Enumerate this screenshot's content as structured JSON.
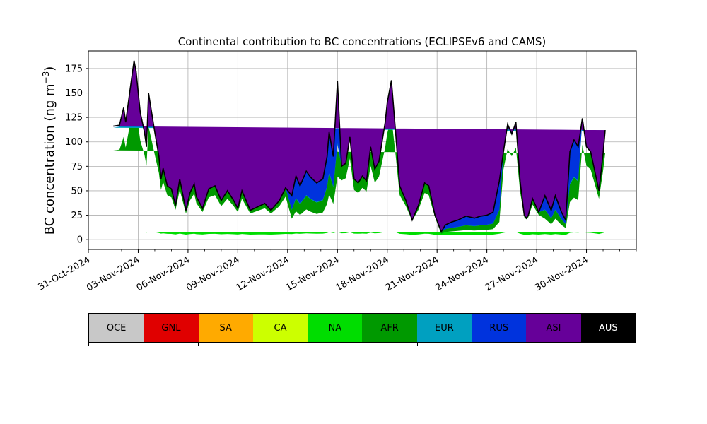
{
  "chart_data": {
    "type": "area",
    "title": "Continental contribution to BC concentrations (ECLIPSEv6 and CAMS)",
    "ylabel_main": "BC concentration (ng m",
    "ylabel_sup": "−3",
    "ylabel_close": ")",
    "xlabel": "",
    "ylim": [
      -10,
      193
    ],
    "yticks": [
      0,
      25,
      50,
      75,
      100,
      125,
      150,
      175
    ],
    "ytick_labels": [
      "0",
      "25",
      "50",
      "75",
      "100",
      "125",
      "150",
      "175"
    ],
    "x_range_days": [
      "2024-10-31",
      "2024-12-03"
    ],
    "xticks": [
      "2024-10-31",
      "2024-11-03",
      "2024-11-06",
      "2024-11-09",
      "2024-11-12",
      "2024-11-15",
      "2024-11-18",
      "2024-11-21",
      "2024-11-24",
      "2024-11-27",
      "2024-11-30"
    ],
    "xtick_labels": [
      "31-Oct-2024",
      "03-Nov-2024",
      "06-Nov-2024",
      "09-Nov-2024",
      "12-Nov-2024",
      "15-Nov-2024",
      "18-Nov-2024",
      "21-Nov-2024",
      "24-Nov-2024",
      "27-Nov-2024",
      "30-Nov-2024"
    ],
    "grid": true,
    "total_x": [
      "2024-11-01T12:00",
      "2024-11-01T21:00",
      "2024-11-02T03:00",
      "2024-11-02T06:00",
      "2024-11-02T12:00",
      "2024-11-02T18:00",
      "2024-11-02T21:00",
      "2024-11-03T03:00",
      "2024-11-03T09:00",
      "2024-11-03T12:00",
      "2024-11-03T15:00",
      "2024-11-04T00:00",
      "2024-11-04T06:00",
      "2024-11-04T09:00",
      "2024-11-04T12:00",
      "2024-11-04T18:00",
      "2024-11-05T00:00",
      "2024-11-05T06:00",
      "2024-11-05T12:00",
      "2024-11-05T21:00",
      "2024-11-06T03:00",
      "2024-11-06T09:00",
      "2024-11-06T12:00",
      "2024-11-06T21:00",
      "2024-11-07T06:00",
      "2024-11-07T15:00",
      "2024-11-08T00:00",
      "2024-11-08T09:00",
      "2024-11-08T18:00",
      "2024-11-09T00:00",
      "2024-11-09T06:00",
      "2024-11-09T18:00",
      "2024-11-10T06:00",
      "2024-11-10T15:00",
      "2024-11-11T00:00",
      "2024-11-11T12:00",
      "2024-11-11T21:00",
      "2024-11-12T06:00",
      "2024-11-12T12:00",
      "2024-11-12T18:00",
      "2024-11-13T03:00",
      "2024-11-13T09:00",
      "2024-11-13T18:00",
      "2024-11-14T03:00",
      "2024-11-14T09:00",
      "2024-11-14T12:00",
      "2024-11-14T18:00",
      "2024-11-15T00:00",
      "2024-11-15T06:00",
      "2024-11-15T12:00",
      "2024-11-15T18:00",
      "2024-11-16T00:00",
      "2024-11-16T06:00",
      "2024-11-16T12:00",
      "2024-11-16T18:00",
      "2024-11-17T00:00",
      "2024-11-17T06:00",
      "2024-11-17T12:00",
      "2024-11-17T21:00",
      "2024-11-18T00:00",
      "2024-11-18T06:00",
      "2024-11-18T12:00",
      "2024-11-18T18:00",
      "2024-11-19T03:00",
      "2024-11-19T12:00",
      "2024-11-19T21:00",
      "2024-11-20T06:00",
      "2024-11-20T12:00",
      "2024-11-20T21:00",
      "2024-11-21T06:00",
      "2024-11-21T12:00",
      "2024-11-21T21:00",
      "2024-11-22T06:00",
      "2024-11-22T18:00",
      "2024-11-23T06:00",
      "2024-11-23T15:00",
      "2024-11-24T00:00",
      "2024-11-24T09:00",
      "2024-11-24T18:00",
      "2024-11-25T00:00",
      "2024-11-25T06:00",
      "2024-11-25T12:00",
      "2024-11-25T18:00",
      "2024-11-26T00:00",
      "2024-11-26T06:00",
      "2024-11-26T09:00",
      "2024-11-26T12:00",
      "2024-11-26T18:00",
      "2024-11-27T03:00",
      "2024-11-27T12:00",
      "2024-11-27T21:00",
      "2024-11-28T03:00",
      "2024-11-28T12:00",
      "2024-11-28T18:00",
      "2024-11-29T00:00",
      "2024-11-29T06:00",
      "2024-11-29T12:00",
      "2024-11-29T18:00",
      "2024-11-30T00:00",
      "2024-11-30T06:00",
      "2024-11-30T12:00",
      "2024-11-30T18:00",
      "2024-12-01T00:00",
      "2024-12-01T03:00",
      "2024-12-01T06:00",
      "2024-12-01T12:00"
    ],
    "total_y": [
      116,
      117,
      135,
      120,
      152,
      183,
      172,
      130,
      110,
      95,
      150,
      110,
      85,
      62,
      73,
      55,
      52,
      35,
      62,
      30,
      48,
      57,
      44,
      32,
      52,
      55,
      40,
      50,
      40,
      32,
      50,
      30,
      34,
      37,
      30,
      40,
      53,
      45,
      65,
      55,
      70,
      64,
      58,
      62,
      85,
      110,
      85,
      162,
      75,
      78,
      105,
      62,
      58,
      65,
      60,
      95,
      72,
      80,
      120,
      140,
      163,
      110,
      55,
      40,
      20,
      35,
      58,
      55,
      25,
      8,
      15,
      18,
      20,
      24,
      22,
      24,
      25,
      28,
      60,
      90,
      118,
      108,
      120,
      60,
      25,
      22,
      25,
      42,
      28,
      45,
      30,
      45,
      28,
      20,
      90,
      102,
      95,
      124,
      95,
      90,
      70,
      50,
      88,
      112
    ]
  },
  "legend": {
    "items": [
      {
        "label": "OCE",
        "color": "#c8c8c8"
      },
      {
        "label": "GNL",
        "color": "#e00000"
      },
      {
        "label": "SA",
        "color": "#ffaa00"
      },
      {
        "label": "CA",
        "color": "#ccff00"
      },
      {
        "label": "NA",
        "color": "#00dd00"
      },
      {
        "label": "AFR",
        "color": "#009900"
      },
      {
        "label": "EUR",
        "color": "#00a0c0"
      },
      {
        "label": "RUS",
        "color": "#0033dd"
      },
      {
        "label": "ASI",
        "color": "#660099"
      },
      {
        "label": "AUS",
        "color": "#000000"
      }
    ]
  }
}
